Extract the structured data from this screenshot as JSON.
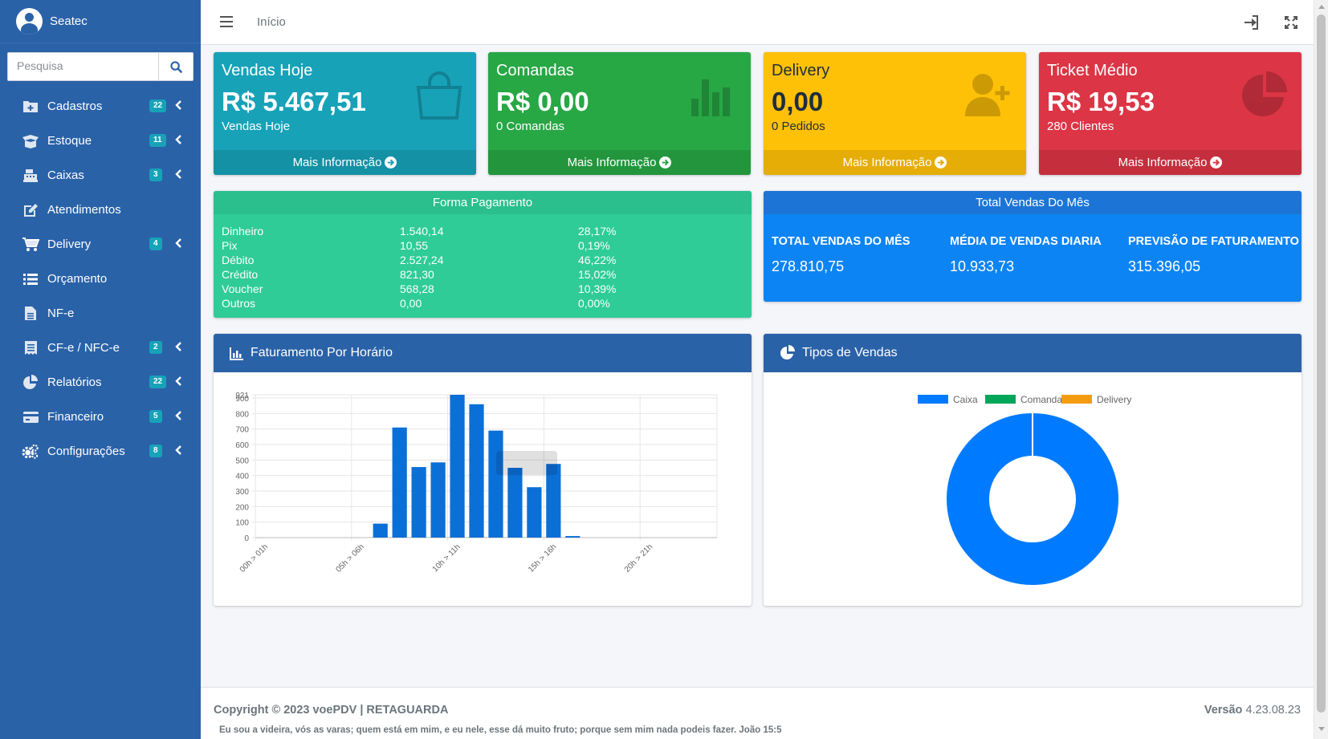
{
  "sidebar": {
    "brand": "Seatec",
    "search_placeholder": "Pesquisa",
    "items": [
      {
        "label": "Cadastros",
        "badge": "22",
        "icon": "folder-plus-icon"
      },
      {
        "label": "Estoque",
        "badge": "11",
        "icon": "box-open-icon"
      },
      {
        "label": "Caixas",
        "badge": "3",
        "icon": "cash-register-icon"
      },
      {
        "label": "Atendimentos",
        "badge": "",
        "icon": "edit-icon"
      },
      {
        "label": "Delivery",
        "badge": "4",
        "icon": "shopping-cart-icon"
      },
      {
        "label": "Orçamento",
        "badge": "",
        "icon": "list-icon"
      },
      {
        "label": "NF-e",
        "badge": "",
        "icon": "file-icon"
      },
      {
        "label": "CF-e / NFC-e",
        "badge": "2",
        "icon": "receipt-icon"
      },
      {
        "label": "Relatórios",
        "badge": "22",
        "icon": "chart-pie-icon"
      },
      {
        "label": "Financeiro",
        "badge": "5",
        "icon": "credit-card-icon"
      },
      {
        "label": "Configurações",
        "badge": "8",
        "icon": "cogs-icon"
      }
    ]
  },
  "topbar": {
    "home": "Início"
  },
  "boxes": [
    {
      "title": "Vendas Hoje",
      "value": "R$ 5.467,51",
      "sub": "Vendas Hoje",
      "footer": "Mais Informação",
      "color": "#17a2b8",
      "icon": "shopping-bag-icon"
    },
    {
      "title": "Comandas",
      "value": "R$ 0,00",
      "sub": "0 Comandas",
      "footer": "Mais Informação",
      "color": "#28a745",
      "icon": "bar-chart-icon"
    },
    {
      "title": "Delivery",
      "value": "0,00",
      "sub": "0 Pedidos",
      "footer": "Mais Informação",
      "color": "#ffc107",
      "icon": "user-plus-icon"
    },
    {
      "title": "Ticket Médio",
      "value": "R$ 19,53",
      "sub": "280 Clientes",
      "footer": "Mais Informação",
      "color": "#dc3545",
      "icon": "pie-chart-icon"
    }
  ],
  "forma_pagamento": {
    "title": "Forma Pagamento",
    "rows": [
      [
        "Dinheiro",
        "1.540,14",
        "28,17%"
      ],
      [
        "Pix",
        "10,55",
        "0,19%"
      ],
      [
        "Débito",
        "2.527,24",
        "46,22%"
      ],
      [
        "Crédito",
        "821,30",
        "15,02%"
      ],
      [
        "Voucher",
        "568,28",
        "10,39%"
      ],
      [
        "Outros",
        "0,00",
        "0,00%"
      ]
    ]
  },
  "total_vendas": {
    "title": "Total Vendas Do Mês",
    "cols": [
      {
        "label": "TOTAL VENDAS DO MÊS",
        "value": "278.810,75"
      },
      {
        "label": "MÉDIA DE VENDAS DIARIA",
        "value": "10.933,73"
      },
      {
        "label": "PREVISÃO DE FATURAMENTO",
        "value": "315.396,05"
      }
    ]
  },
  "faturamento": {
    "title": "Faturamento Por Horário"
  },
  "tipos": {
    "title": "Tipos de Vendas"
  },
  "chart_data": [
    {
      "type": "bar",
      "title": "",
      "xlabel": "",
      "ylabel": "",
      "ylim": [
        0,
        921
      ],
      "yticks": [
        "0",
        "100",
        "200",
        "300",
        "400",
        "500",
        "600",
        "700",
        "800",
        "900",
        "921"
      ],
      "xtick_labels": [
        "00h > 01h",
        "05h > 06h",
        "10h > 11h",
        "15h > 16h",
        "20h > 21h"
      ],
      "categories": [
        "00h > 01h",
        "01h > 02h",
        "02h > 03h",
        "03h > 04h",
        "04h > 05h",
        "05h > 06h",
        "06h > 07h",
        "07h > 08h",
        "08h > 09h",
        "09h > 10h",
        "10h > 11h",
        "11h > 12h",
        "12h > 13h",
        "13h > 14h",
        "14h > 15h",
        "15h > 16h",
        "16h > 17h",
        "17h > 18h",
        "18h > 19h",
        "19h > 20h",
        "20h > 21h",
        "21h > 22h",
        "22h > 23h",
        "23h > 00h"
      ],
      "values": [
        0,
        0,
        0,
        0,
        0,
        0,
        90,
        710,
        455,
        485,
        921,
        860,
        690,
        450,
        325,
        475,
        10,
        0,
        0,
        0,
        0,
        0,
        0,
        0
      ],
      "color": "#0b6fd8",
      "grid": true
    },
    {
      "type": "pie",
      "title": "",
      "legend": [
        "Caixa",
        "Comanda",
        "Delivery"
      ],
      "legend_position": "top",
      "values": [
        5467.51,
        0,
        0
      ],
      "colors": [
        "#007bff",
        "#00a65a",
        "#f39c12"
      ],
      "donut": true
    }
  ],
  "footer": {
    "copyright": "Copyright © 2023 voePDV | RETAGUARDA",
    "verse": "Eu sou a videira, vós as varas; quem está em mim, e eu nele, esse dá muito fruto; porque sem mim nada podeis fazer. João 15:5",
    "version_label": "Versão",
    "version": "4.23.08.23"
  }
}
